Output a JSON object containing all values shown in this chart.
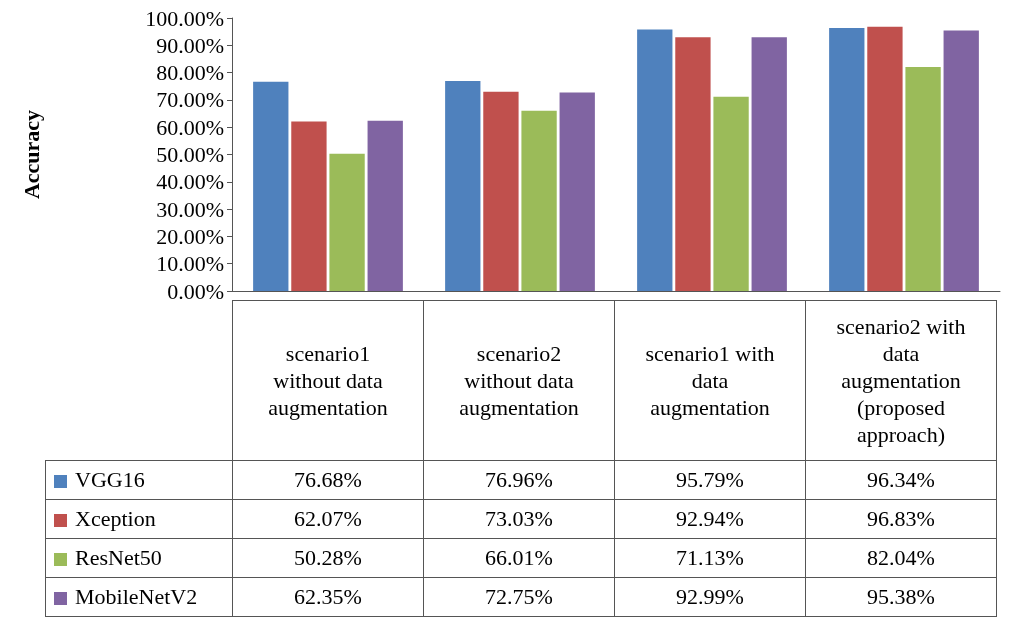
{
  "chart_data": {
    "type": "bar",
    "ylabel": "Accuracy",
    "categories": [
      "scenario1 without data augmentation",
      "scenario2 without data augmentation",
      "scenario1 with data augmentation",
      "scenario2 with data augmentation (proposed approach)"
    ],
    "series": [
      {
        "name": "VGG16",
        "color": "#4f81bd",
        "values": [
          76.68,
          76.96,
          95.79,
          96.34
        ],
        "value_labels": [
          "76.68%",
          "76.96%",
          "95.79%",
          "96.34%"
        ]
      },
      {
        "name": "Xception",
        "color": "#c0504d",
        "values": [
          62.07,
          73.03,
          92.94,
          96.83
        ],
        "value_labels": [
          "62.07%",
          "73.03%",
          "92.94%",
          "96.83%"
        ]
      },
      {
        "name": "ResNet50",
        "color": "#9bbb59",
        "values": [
          50.28,
          66.01,
          71.13,
          82.04
        ],
        "value_labels": [
          "50.28%",
          "66.01%",
          "71.13%",
          "82.04%"
        ]
      },
      {
        "name": "MobileNetV2",
        "color": "#8064a2",
        "values": [
          62.35,
          72.75,
          92.99,
          95.38
        ],
        "value_labels": [
          "62.35%",
          "72.75%",
          "92.99%",
          "95.38%"
        ]
      }
    ],
    "ylim": [
      0,
      100
    ],
    "yticks": [
      {
        "value": 0,
        "label": "0.00%"
      },
      {
        "value": 10,
        "label": "10.00%"
      },
      {
        "value": 20,
        "label": "20.00%"
      },
      {
        "value": 30,
        "label": "30.00%"
      },
      {
        "value": 40,
        "label": "40.00%"
      },
      {
        "value": 50,
        "label": "50.00%"
      },
      {
        "value": 60,
        "label": "60.00%"
      },
      {
        "value": 70,
        "label": "70.00%"
      },
      {
        "value": 80,
        "label": "80.00%"
      },
      {
        "value": 90,
        "label": "90.00%"
      },
      {
        "value": 100,
        "label": "100.00%"
      }
    ],
    "grid": false,
    "legend": "bottom"
  }
}
